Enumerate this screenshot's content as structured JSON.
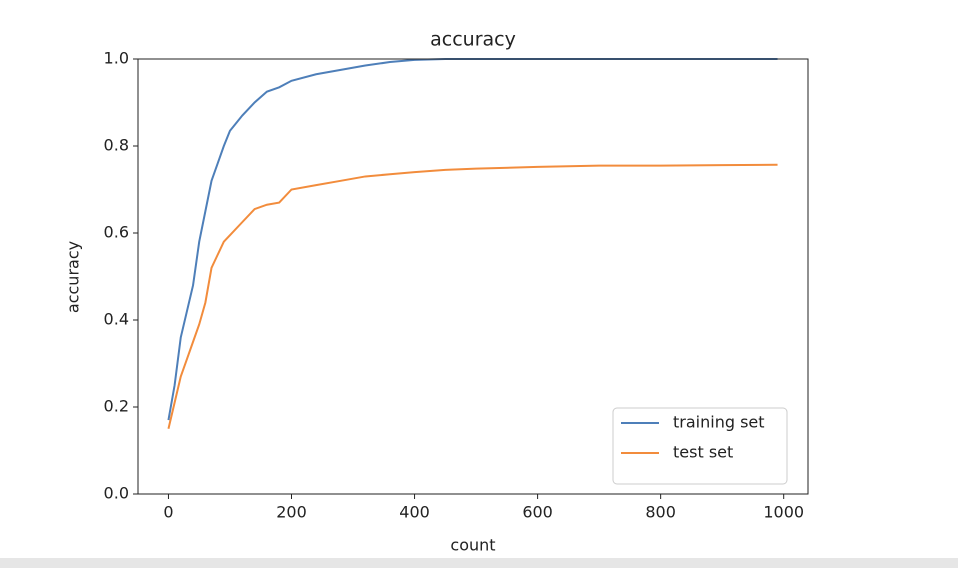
{
  "chart_data": {
    "type": "line",
    "title": "accuracy",
    "x_label": "count",
    "y_label": "accuracy",
    "x": [
      0,
      10,
      20,
      30,
      40,
      50,
      60,
      70,
      80,
      90,
      100,
      120,
      140,
      160,
      180,
      200,
      240,
      280,
      320,
      360,
      400,
      450,
      500,
      600,
      700,
      800,
      900,
      990
    ],
    "series": [
      {
        "name": "training set",
        "color": "#4e7fb9",
        "values": [
          0.17,
          0.25,
          0.36,
          0.42,
          0.48,
          0.58,
          0.65,
          0.72,
          0.76,
          0.8,
          0.835,
          0.87,
          0.9,
          0.925,
          0.935,
          0.95,
          0.965,
          0.975,
          0.985,
          0.993,
          0.998,
          1.0,
          1.0,
          1.0,
          1.0,
          1.0,
          1.0,
          1.0
        ]
      },
      {
        "name": "test set",
        "color": "#f28c3c",
        "values": [
          0.15,
          0.21,
          0.27,
          0.31,
          0.35,
          0.39,
          0.44,
          0.52,
          0.55,
          0.58,
          0.595,
          0.625,
          0.655,
          0.665,
          0.67,
          0.7,
          0.71,
          0.72,
          0.73,
          0.735,
          0.74,
          0.745,
          0.748,
          0.752,
          0.755,
          0.755,
          0.756,
          0.757
        ]
      }
    ],
    "xlim": [
      -49.5,
      1039.5
    ],
    "ylim": [
      0.0,
      1.0
    ],
    "xticks": [
      0,
      200,
      400,
      600,
      800,
      1000
    ],
    "yticks": [
      {
        "value": 0,
        "label": "0.0"
      },
      0.2,
      0.4,
      0.6,
      0.8,
      {
        "value": 1,
        "label": "1.0"
      }
    ],
    "legend": "lower right"
  }
}
